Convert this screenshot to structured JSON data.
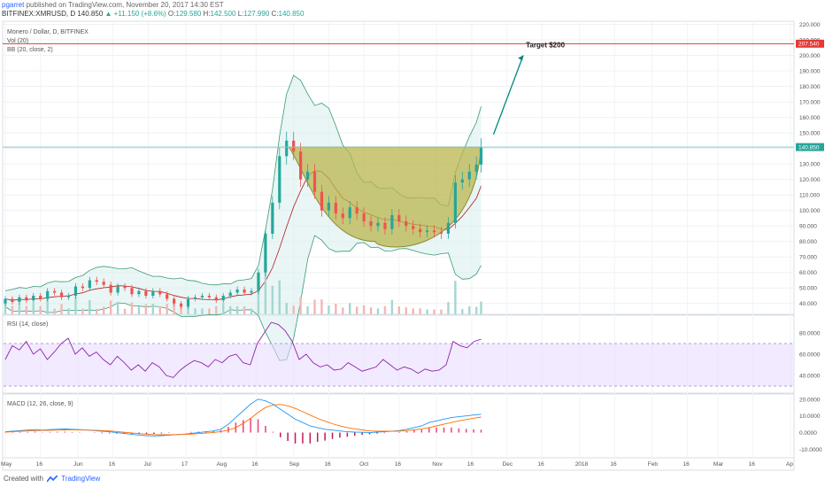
{
  "header": {
    "author": "pgarret",
    "published_text": "published on TradingView.com, November 20, 2017 14:30 EST",
    "symbol": "BITFINEX:XMRUSD, D",
    "last": "140.850",
    "change": "+11.150 (+8.6%)",
    "o_label": "O:",
    "o_val": "129.580",
    "h_label": "H:",
    "h_val": "142.500",
    "l_label": "L:",
    "l_val": "127.990",
    "c_label": "C:",
    "c_val": "140.850"
  },
  "footer": {
    "created_with": "Created with",
    "brand": "TradingView"
  },
  "chart_data": {
    "type": "candlestick",
    "title": "Monero / Dollar, D, BITFINEX",
    "indicators": [
      "Vol (20)",
      "BB (20, close, 2)"
    ],
    "price_axis": {
      "ticks": [
        "220.000",
        "210.000",
        "200.000",
        "190.000",
        "180.000",
        "170.000",
        "160.000",
        "150.000",
        "140.000",
        "130.000",
        "120.000",
        "110.000",
        "100.000",
        "90.000",
        "80.000",
        "70.000",
        "60.000",
        "50.000",
        "40.000"
      ],
      "ylim": [
        33,
        222
      ]
    },
    "price_labels": {
      "resistance": "207.540",
      "last": "140.850"
    },
    "resistance_level": 207.54,
    "horizontal_level": 140.85,
    "target_annotation": "Target $200",
    "time_axis": [
      "May",
      "16",
      "Jun",
      "16",
      "Jul",
      "17",
      "Aug",
      "16",
      "Sep",
      "16",
      "Oct",
      "16",
      "Nov",
      "16",
      "Dec",
      "16",
      "2018",
      "16",
      "Feb",
      "16",
      "Mar",
      "16",
      "Ap"
    ],
    "candles": [
      {
        "d": "2017-05-01",
        "o": 40,
        "c": 43
      },
      {
        "d": "2017-05-04",
        "o": 43,
        "c": 41
      },
      {
        "d": "2017-05-07",
        "o": 41,
        "c": 44
      },
      {
        "d": "2017-05-10",
        "o": 44,
        "c": 42
      },
      {
        "d": "2017-05-13",
        "o": 42,
        "c": 45
      },
      {
        "d": "2017-05-16",
        "o": 45,
        "c": 43
      },
      {
        "d": "2017-05-19",
        "o": 43,
        "c": 48
      },
      {
        "d": "2017-05-22",
        "o": 48,
        "c": 47
      },
      {
        "d": "2017-05-25",
        "o": 47,
        "c": 44
      },
      {
        "d": "2017-05-28",
        "o": 44,
        "c": 45
      },
      {
        "d": "2017-05-31",
        "o": 45,
        "c": 51
      },
      {
        "d": "2017-06-03",
        "o": 51,
        "c": 50
      },
      {
        "d": "2017-06-06",
        "o": 50,
        "c": 55
      },
      {
        "d": "2017-06-09",
        "o": 55,
        "c": 54
      },
      {
        "d": "2017-06-12",
        "o": 54,
        "c": 52
      },
      {
        "d": "2017-06-15",
        "o": 52,
        "c": 47
      },
      {
        "d": "2017-06-18",
        "o": 47,
        "c": 51
      },
      {
        "d": "2017-06-21",
        "o": 51,
        "c": 50
      },
      {
        "d": "2017-06-24",
        "o": 50,
        "c": 46
      },
      {
        "d": "2017-06-27",
        "o": 46,
        "c": 48
      },
      {
        "d": "2017-06-30",
        "o": 48,
        "c": 45
      },
      {
        "d": "2017-07-03",
        "o": 45,
        "c": 48
      },
      {
        "d": "2017-07-06",
        "o": 48,
        "c": 46
      },
      {
        "d": "2017-07-09",
        "o": 46,
        "c": 43
      },
      {
        "d": "2017-07-12",
        "o": 43,
        "c": 40
      },
      {
        "d": "2017-07-15",
        "o": 40,
        "c": 38
      },
      {
        "d": "2017-07-18",
        "o": 38,
        "c": 43
      },
      {
        "d": "2017-07-21",
        "o": 43,
        "c": 44
      },
      {
        "d": "2017-07-24",
        "o": 44,
        "c": 45
      },
      {
        "d": "2017-07-27",
        "o": 45,
        "c": 44
      },
      {
        "d": "2017-07-30",
        "o": 44,
        "c": 42
      },
      {
        "d": "2017-08-02",
        "o": 42,
        "c": 45
      },
      {
        "d": "2017-08-05",
        "o": 45,
        "c": 47
      },
      {
        "d": "2017-08-08",
        "o": 47,
        "c": 49
      },
      {
        "d": "2017-08-11",
        "o": 49,
        "c": 47
      },
      {
        "d": "2017-08-14",
        "o": 47,
        "c": 48
      },
      {
        "d": "2017-08-17",
        "o": 48,
        "c": 60
      },
      {
        "d": "2017-08-20",
        "o": 60,
        "c": 85
      },
      {
        "d": "2017-08-23",
        "o": 85,
        "c": 105
      },
      {
        "d": "2017-08-26",
        "o": 105,
        "c": 135
      },
      {
        "d": "2017-08-29",
        "o": 135,
        "c": 145
      },
      {
        "d": "2017-09-01",
        "o": 145,
        "c": 138
      },
      {
        "d": "2017-09-04",
        "o": 138,
        "c": 120
      },
      {
        "d": "2017-09-07",
        "o": 120,
        "c": 125
      },
      {
        "d": "2017-09-10",
        "o": 125,
        "c": 112
      },
      {
        "d": "2017-09-13",
        "o": 112,
        "c": 100
      },
      {
        "d": "2017-09-16",
        "o": 100,
        "c": 105
      },
      {
        "d": "2017-09-19",
        "o": 105,
        "c": 98
      },
      {
        "d": "2017-09-22",
        "o": 98,
        "c": 95
      },
      {
        "d": "2017-09-25",
        "o": 95,
        "c": 102
      },
      {
        "d": "2017-09-28",
        "o": 102,
        "c": 98
      },
      {
        "d": "2017-10-01",
        "o": 98,
        "c": 93
      },
      {
        "d": "2017-10-04",
        "o": 93,
        "c": 90
      },
      {
        "d": "2017-10-07",
        "o": 90,
        "c": 92
      },
      {
        "d": "2017-10-10",
        "o": 92,
        "c": 88
      },
      {
        "d": "2017-10-13",
        "o": 88,
        "c": 97
      },
      {
        "d": "2017-10-16",
        "o": 97,
        "c": 93
      },
      {
        "d": "2017-10-19",
        "o": 93,
        "c": 90
      },
      {
        "d": "2017-10-22",
        "o": 90,
        "c": 88
      },
      {
        "d": "2017-10-25",
        "o": 88,
        "c": 86
      },
      {
        "d": "2017-10-28",
        "o": 86,
        "c": 87
      },
      {
        "d": "2017-10-31",
        "o": 87,
        "c": 86
      },
      {
        "d": "2017-11-03",
        "o": 86,
        "c": 85
      },
      {
        "d": "2017-11-06",
        "o": 85,
        "c": 92
      },
      {
        "d": "2017-11-09",
        "o": 92,
        "c": 118
      },
      {
        "d": "2017-11-12",
        "o": 118,
        "c": 120
      },
      {
        "d": "2017-11-15",
        "o": 120,
        "c": 125
      },
      {
        "d": "2017-11-18",
        "o": 125,
        "c": 129.58
      },
      {
        "d": "2017-11-20",
        "o": 129.58,
        "c": 140.85
      }
    ],
    "rsi": {
      "label": "RSI (14, close)",
      "ticks": [
        "80.0000",
        "60.0000",
        "40.0000"
      ],
      "ylim": [
        25,
        95
      ],
      "values": [
        55,
        68,
        64,
        72,
        60,
        65,
        55,
        62,
        70,
        75,
        60,
        66,
        58,
        62,
        55,
        50,
        58,
        52,
        45,
        50,
        44,
        52,
        48,
        40,
        38,
        45,
        50,
        54,
        52,
        48,
        55,
        52,
        58,
        60,
        52,
        50,
        70,
        80,
        90,
        88,
        82,
        72,
        55,
        60,
        52,
        48,
        50,
        45,
        46,
        52,
        48,
        44,
        46,
        48,
        55,
        50,
        45,
        48,
        46,
        42,
        46,
        44,
        45,
        50,
        72,
        68,
        66,
        72,
        74
      ]
    },
    "macd": {
      "label": "MACD (12, 26, close, 9)",
      "ticks": [
        "20.0000",
        "10.0000",
        "0.0000",
        "-10.0000"
      ],
      "ylim": [
        -14,
        22
      ],
      "macd_values": [
        0.5,
        0.8,
        1.2,
        1.5,
        1.8,
        1.5,
        1.8,
        2.0,
        2.2,
        2.0,
        1.8,
        1.5,
        1.2,
        0.8,
        0.5,
        0,
        -0.5,
        -1,
        -1.5,
        -1.8,
        -2.0,
        -1.8,
        -1.5,
        -1.2,
        -1.0,
        -0.5,
        0,
        0.5,
        1,
        2,
        5,
        9,
        13,
        17,
        20,
        19,
        17,
        14,
        11,
        8,
        6,
        4,
        3,
        2,
        1.5,
        1,
        0.5,
        0.3,
        0.2,
        0,
        0.3,
        0.5,
        0.8,
        1.2,
        2,
        3,
        4,
        6,
        7,
        8,
        9,
        9.5,
        10,
        10.5,
        11
      ],
      "signal_values": [
        0.3,
        0.5,
        0.8,
        1.0,
        1.2,
        1.3,
        1.4,
        1.5,
        1.6,
        1.7,
        1.6,
        1.5,
        1.4,
        1.2,
        1.0,
        0.6,
        0.2,
        -0.2,
        -0.6,
        -0.9,
        -1.2,
        -1.3,
        -1.3,
        -1.2,
        -1.1,
        -0.9,
        -0.6,
        -0.3,
        0.1,
        0.6,
        1.5,
        3,
        5.5,
        8.5,
        12,
        15,
        16.5,
        16.8,
        16,
        14.5,
        12.5,
        10.5,
        8.5,
        6.8,
        5.3,
        4.0,
        3.0,
        2.2,
        1.6,
        1.0,
        0.9,
        0.8,
        0.8,
        0.9,
        1.2,
        1.6,
        2.2,
        3.0,
        4.0,
        5.0,
        6.0,
        7.0,
        7.8,
        8.6,
        9.3
      ],
      "histogram": [
        0.2,
        0.3,
        0.4,
        0.5,
        0.6,
        0.2,
        0.4,
        0.5,
        0.6,
        0.3,
        0.2,
        0,
        -0.2,
        -0.4,
        -0.5,
        -0.6,
        -0.7,
        -0.8,
        -0.9,
        -0.9,
        -0.8,
        -0.5,
        -0.2,
        0,
        0.1,
        0.4,
        0.6,
        0.8,
        0.9,
        1.4,
        3.5,
        6,
        7.5,
        8.5,
        8,
        4,
        0.5,
        -2.8,
        -5,
        -6.5,
        -6.5,
        -6.5,
        -5.5,
        -4.8,
        -3.8,
        -3.0,
        -2.5,
        -1.9,
        -1.4,
        -1.0,
        -0.6,
        -0.3,
        0,
        0.3,
        0.8,
        1.4,
        1.8,
        3,
        3,
        3,
        3,
        2.5,
        2.2,
        1.9,
        1.7
      ]
    },
    "cup_annotation": "cup pattern"
  }
}
